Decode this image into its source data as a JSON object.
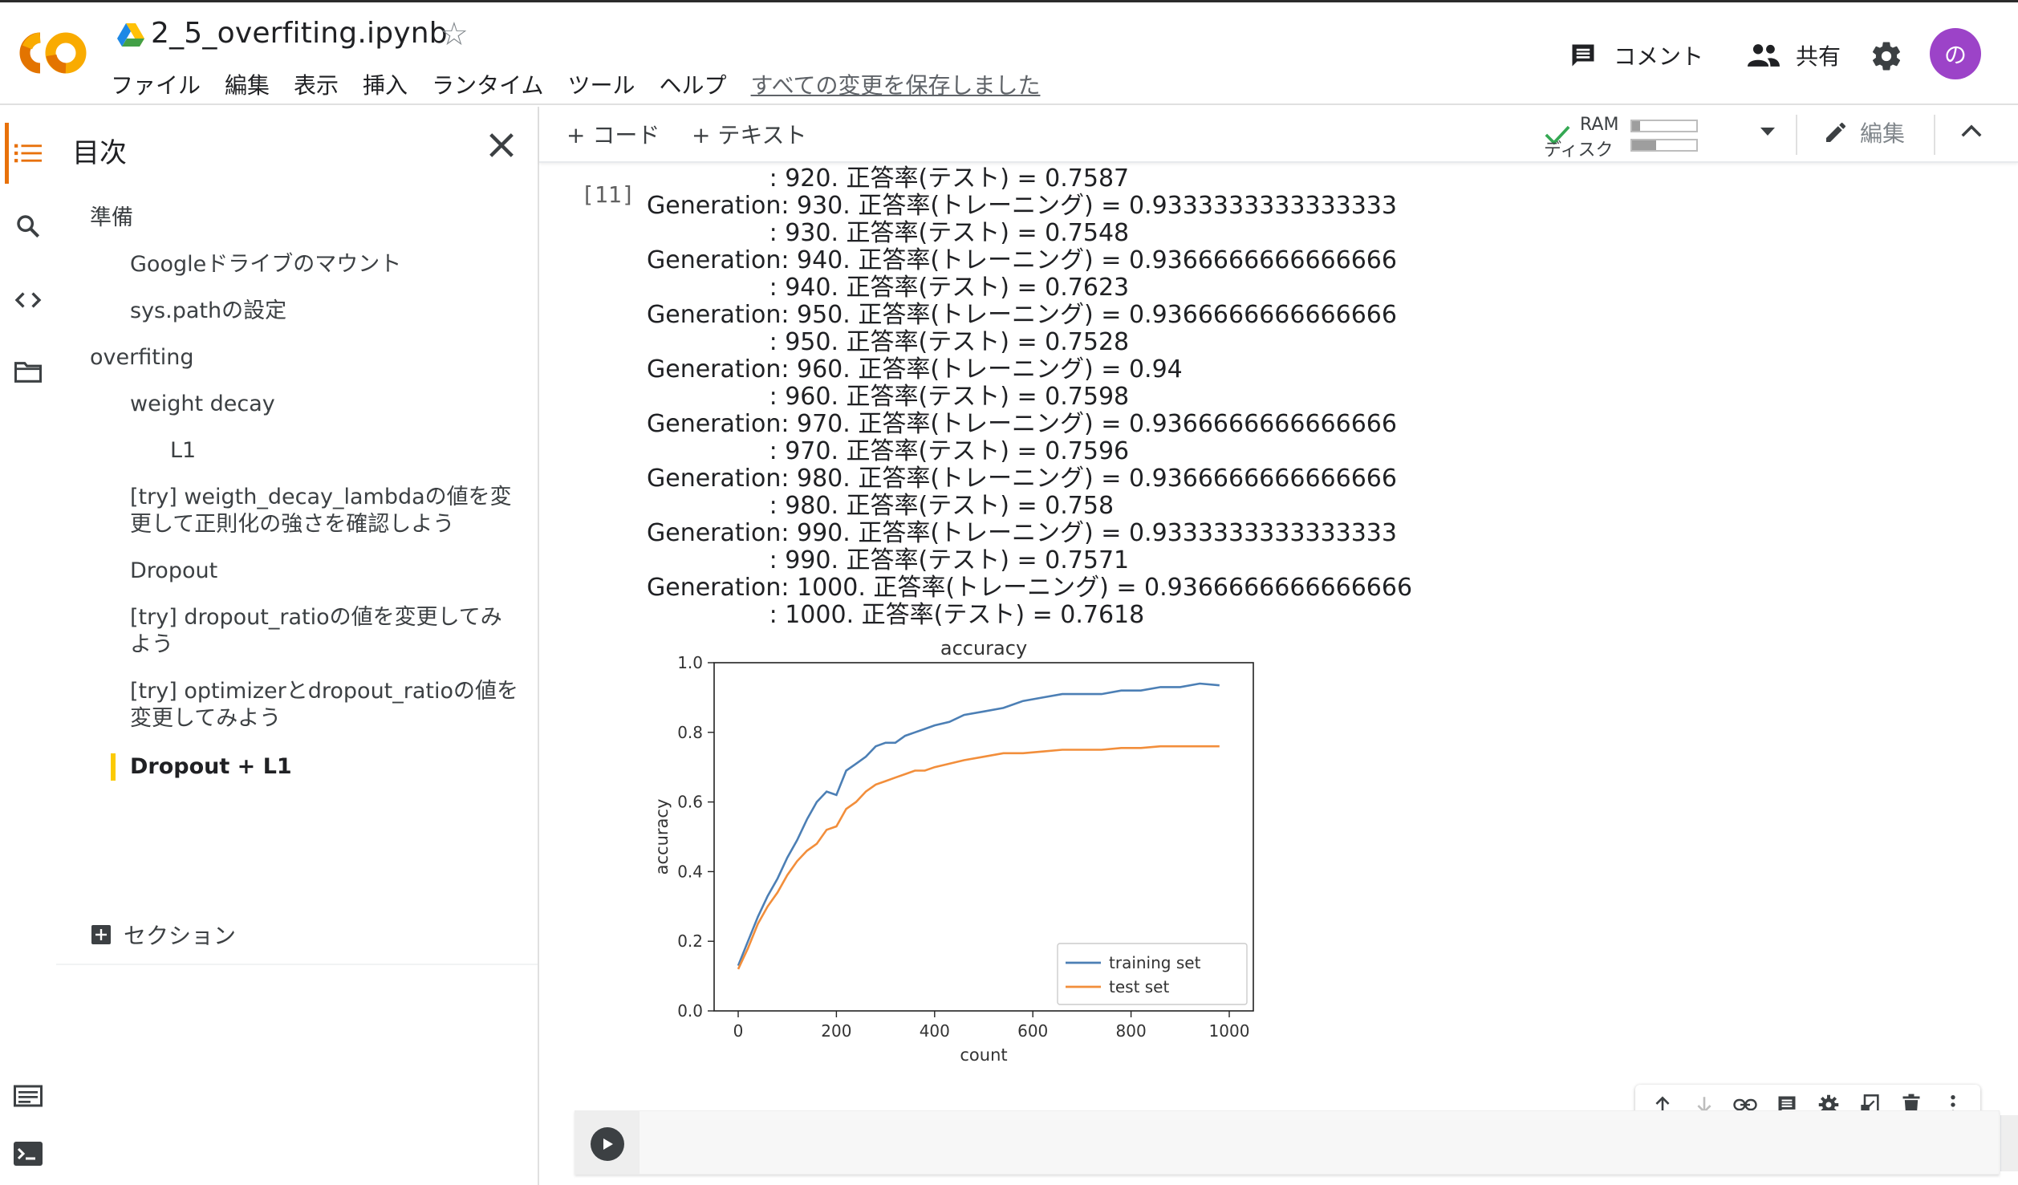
{
  "header": {
    "title": "2_5_overfiting.ipynb",
    "menu": [
      "ファイル",
      "編集",
      "表示",
      "挿入",
      "ランタイム",
      "ツール",
      "ヘルプ"
    ],
    "saved_status": "すべての変更を保存しました",
    "comment_label": "コメント",
    "share_label": "共有",
    "avatar_letter": "の",
    "colors": {
      "logo_orange": "#f9ab00",
      "logo_dark_orange": "#e37400",
      "avatar_bg": "#9c43c8"
    }
  },
  "rail": {
    "icons": [
      "toc-icon",
      "search-icon",
      "code-snippets-icon",
      "folder-icon",
      "command-palette-icon",
      "terminal-icon"
    ],
    "active_color": "#e8710a"
  },
  "toc": {
    "title": "目次",
    "items": [
      {
        "label": "準備",
        "level": 1
      },
      {
        "label": "Googleドライブのマウント",
        "level": 2
      },
      {
        "label": "sys.pathの設定",
        "level": 2
      },
      {
        "label": "overfiting",
        "level": 1
      },
      {
        "label": "weight decay",
        "level": 2
      },
      {
        "label": "L1",
        "level": 3
      },
      {
        "label": "[try] weigth_decay_lambdaの値を変更して正則化の強さを確認しよう",
        "level": 2
      },
      {
        "label": "Dropout",
        "level": 2
      },
      {
        "label": "[try] dropout_ratioの値を変更してみよう",
        "level": 2
      },
      {
        "label": "[try] optimizerとdropout_ratioの値を変更してみよう",
        "level": 2
      },
      {
        "label": "Dropout + L1",
        "level": 2,
        "active": true
      }
    ],
    "section_label": "セクション",
    "active_color": "#fbca04"
  },
  "toolbar": {
    "add_code": "+ コード",
    "add_text": "+ テキスト",
    "ram_label": "RAM",
    "disk_label": "ディスク",
    "ram_usage": 0.12,
    "disk_usage": 0.38,
    "edit_label": "編集"
  },
  "cell": {
    "exec_count": "[11]",
    "output_lines": [
      "                : 920. 正答率(テスト) = 0.7587",
      "Generation: 930. 正答率(トレーニング) = 0.9333333333333333",
      "                : 930. 正答率(テスト) = 0.7548",
      "Generation: 940. 正答率(トレーニング) = 0.9366666666666666",
      "                : 940. 正答率(テスト) = 0.7623",
      "Generation: 950. 正答率(トレーニング) = 0.9366666666666666",
      "                : 950. 正答率(テスト) = 0.7528",
      "Generation: 960. 正答率(トレーニング) = 0.94",
      "                : 960. 正答率(テスト) = 0.7598",
      "Generation: 970. 正答率(トレーニング) = 0.9366666666666666",
      "                : 970. 正答率(テスト) = 0.7596",
      "Generation: 980. 正答率(トレーニング) = 0.9366666666666666",
      "                : 980. 正答率(テスト) = 0.758",
      "Generation: 990. 正答率(トレーニング) = 0.9333333333333333",
      "                : 990. 正答率(テスト) = 0.7571",
      "Generation: 1000. 正答率(トレーニング) = 0.9366666666666666",
      "                : 1000. 正答率(テスト) = 0.7618"
    ]
  },
  "cell_toolbar": {
    "icons": [
      "move-up-icon",
      "move-down-icon",
      "link-icon",
      "comment-icon",
      "settings-icon",
      "mirror-cell-icon",
      "delete-icon",
      "more-icon"
    ]
  },
  "chart_data": {
    "type": "line",
    "title": "accuracy",
    "xlabel": "count",
    "ylabel": "accuracy",
    "xlim": [
      0,
      1000
    ],
    "ylim": [
      0.0,
      1.0
    ],
    "xticks": [
      0,
      200,
      400,
      600,
      800,
      1000
    ],
    "yticks": [
      0.0,
      0.2,
      0.4,
      0.6,
      0.8,
      1.0
    ],
    "legend_position": "lower-right",
    "grid": false,
    "x": [
      0,
      20,
      40,
      60,
      80,
      100,
      120,
      140,
      160,
      180,
      200,
      220,
      240,
      260,
      280,
      300,
      320,
      340,
      360,
      380,
      400,
      430,
      460,
      500,
      540,
      580,
      620,
      660,
      700,
      740,
      780,
      820,
      860,
      900,
      940,
      980
    ],
    "series": [
      {
        "name": "training set",
        "color": "#4c7fb5",
        "values": [
          0.13,
          0.2,
          0.27,
          0.33,
          0.38,
          0.44,
          0.49,
          0.55,
          0.6,
          0.63,
          0.62,
          0.69,
          0.71,
          0.73,
          0.76,
          0.77,
          0.77,
          0.79,
          0.8,
          0.81,
          0.82,
          0.83,
          0.85,
          0.86,
          0.87,
          0.89,
          0.9,
          0.91,
          0.91,
          0.91,
          0.92,
          0.92,
          0.93,
          0.93,
          0.94,
          0.935
        ]
      },
      {
        "name": "test set",
        "color": "#f28e3b",
        "values": [
          0.12,
          0.18,
          0.25,
          0.3,
          0.34,
          0.39,
          0.43,
          0.46,
          0.48,
          0.52,
          0.53,
          0.58,
          0.6,
          0.63,
          0.65,
          0.66,
          0.67,
          0.68,
          0.69,
          0.69,
          0.7,
          0.71,
          0.72,
          0.73,
          0.74,
          0.74,
          0.745,
          0.75,
          0.75,
          0.75,
          0.755,
          0.755,
          0.76,
          0.76,
          0.76,
          0.76
        ]
      }
    ]
  }
}
